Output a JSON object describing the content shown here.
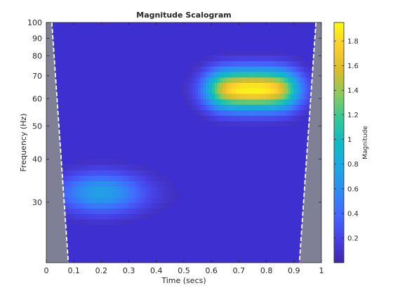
{
  "chart_data": {
    "type": "heatmap",
    "title": "Magnitude Scalogram",
    "xlabel": "Time (secs)",
    "ylabel": "Frequency (Hz)",
    "colorbar_label": "Magnitude",
    "xlim": [
      0,
      1
    ],
    "ylim": [
      20,
      100
    ],
    "yscale": "log",
    "x_ticks": [
      0,
      0.1,
      0.2,
      0.3,
      0.4,
      0.5,
      0.6,
      0.7,
      0.8,
      0.9,
      1
    ],
    "x_tick_labels": [
      "0",
      "0.1",
      "0.2",
      "0.3",
      "0.4",
      "0.5",
      "0.6",
      "0.7",
      "0.8",
      "0.9",
      "1"
    ],
    "y_ticks": [
      30,
      40,
      50,
      60,
      70,
      80,
      90,
      100
    ],
    "y_tick_labels": [
      "30",
      "40",
      "50",
      "60",
      "70",
      "80",
      "90",
      "100"
    ],
    "clim": [
      0,
      1.95
    ],
    "colorbar_ticks": [
      0.2,
      0.4,
      0.6,
      0.8,
      1,
      1.2,
      1.4,
      1.6,
      1.8
    ],
    "colorbar_tick_labels": [
      "0.2",
      "0.4",
      "0.6",
      "0.8",
      "1",
      "1.2",
      "1.4",
      "1.6",
      "1.8"
    ],
    "colormap": "parula",
    "components": [
      {
        "t_start": 0.1,
        "t_end": 0.3,
        "frequency": 32,
        "peak_magnitude": 0.95
      },
      {
        "t_start": 0.6,
        "t_end": 0.9,
        "frequency": 64,
        "peak_magnitude": 1.9
      }
    ],
    "cone_of_influence": {
      "left_x_at_bottom": 0.08,
      "right_x_at_bottom": 0.92,
      "left_x_at_top": 0.02,
      "right_x_at_top": 0.98
    }
  }
}
